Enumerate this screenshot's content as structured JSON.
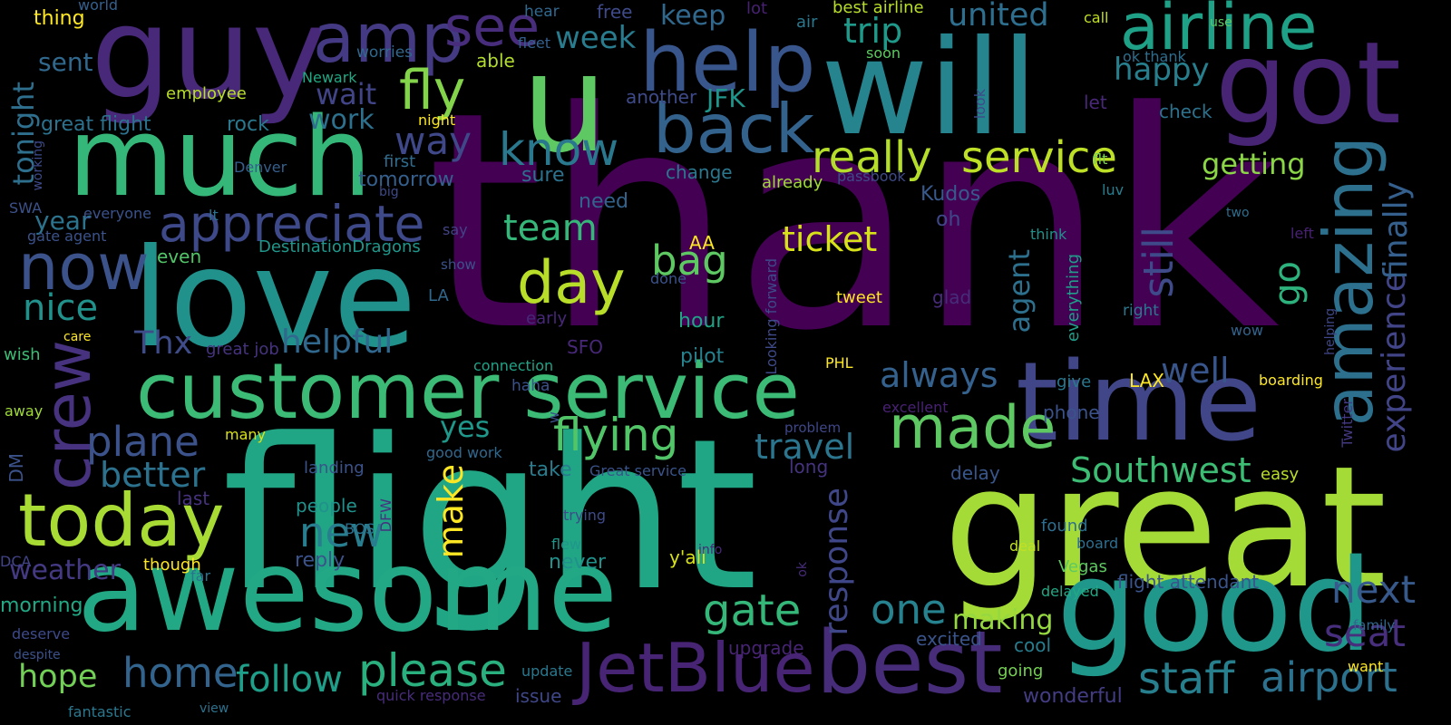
{
  "wordcloud": {
    "palette": [
      "#440154",
      "#3b528b",
      "#21918c",
      "#5ec962",
      "#fde725"
    ],
    "words": [
      {
        "text": "thank",
        "color": "#440154"
      },
      {
        "text": "flight",
        "color": "#21a685"
      },
      {
        "text": "will",
        "color": "#25848e"
      },
      {
        "text": "great",
        "color": "#a5db36"
      },
      {
        "text": "love",
        "color": "#21918c"
      },
      {
        "text": "awesome",
        "color": "#22a884"
      },
      {
        "text": "good",
        "color": "#1f988b"
      },
      {
        "text": "much",
        "color": "#35b779"
      },
      {
        "text": "guy",
        "color": "#482878"
      },
      {
        "text": "u",
        "color": "#5ec962"
      },
      {
        "text": "got",
        "color": "#482475"
      },
      {
        "text": "time",
        "color": "#404688"
      },
      {
        "text": "customer service",
        "color": "#3bbb75"
      },
      {
        "text": "best",
        "color": "#472c7a"
      },
      {
        "text": "today",
        "color": "#a8db34"
      },
      {
        "text": "help",
        "color": "#39568c"
      },
      {
        "text": "back",
        "color": "#33638d"
      },
      {
        "text": "airline",
        "color": "#1fa188"
      },
      {
        "text": "amazing",
        "color": "#2d708e"
      },
      {
        "text": "JetBlue",
        "color": "#482475"
      },
      {
        "text": "now",
        "color": "#3b528b"
      },
      {
        "text": "appreciate",
        "color": "#3e4989"
      },
      {
        "text": "crew",
        "color": "#46327e"
      },
      {
        "text": "day",
        "color": "#b8de29"
      },
      {
        "text": "know",
        "color": "#2a788e"
      },
      {
        "text": "made",
        "color": "#5ec962"
      },
      {
        "text": "amp",
        "color": "#443983"
      },
      {
        "text": "see",
        "color": "#472d7b"
      },
      {
        "text": "fly",
        "color": "#84d44b"
      },
      {
        "text": "really",
        "color": "#b5de2b"
      },
      {
        "text": "service",
        "color": "#bddf26"
      },
      {
        "text": "please",
        "color": "#2ab07f"
      },
      {
        "text": "flying",
        "color": "#52c569"
      },
      {
        "text": "staff",
        "color": "#277f8e"
      },
      {
        "text": "airport",
        "color": "#2c728e"
      },
      {
        "text": "gate",
        "color": "#35b779"
      },
      {
        "text": "follow",
        "color": "#1f9e89"
      },
      {
        "text": "home",
        "color": "#32648e"
      },
      {
        "text": "plane",
        "color": "#3b528b"
      },
      {
        "text": "new",
        "color": "#287d8e"
      },
      {
        "text": "one",
        "color": "#26828e"
      },
      {
        "text": "experience",
        "color": "#414487"
      },
      {
        "text": "finally",
        "color": "#355f8d"
      },
      {
        "text": "still",
        "color": "#3e4a89"
      },
      {
        "text": "Southwest",
        "color": "#3dbc74"
      },
      {
        "text": "travel",
        "color": "#2b758e"
      },
      {
        "text": "next",
        "color": "#38598c"
      },
      {
        "text": "seat",
        "color": "#472f7d"
      },
      {
        "text": "response",
        "color": "#3f4788"
      },
      {
        "text": "make",
        "color": "#fde725"
      },
      {
        "text": "hope",
        "color": "#73d056"
      },
      {
        "text": "nice",
        "color": "#21918c"
      },
      {
        "text": "helpful",
        "color": "#31688e"
      },
      {
        "text": "ticket",
        "color": "#d8e219"
      },
      {
        "text": "bag",
        "color": "#5ec962"
      },
      {
        "text": "team",
        "color": "#35b779"
      },
      {
        "text": "always",
        "color": "#34618d"
      },
      {
        "text": "well",
        "color": "#39568c"
      },
      {
        "text": "better",
        "color": "#2c728e"
      },
      {
        "text": "weather",
        "color": "#443a83"
      },
      {
        "text": "way",
        "color": "#3f4889"
      },
      {
        "text": "trip",
        "color": "#1f9a8a"
      },
      {
        "text": "week",
        "color": "#287c8e"
      },
      {
        "text": "united",
        "color": "#2e6e8e"
      },
      {
        "text": "happy",
        "color": "#277f8e"
      },
      {
        "text": "getting",
        "color": "#8bd646"
      },
      {
        "text": "go",
        "color": "#2db27d"
      },
      {
        "text": "making",
        "color": "#95d840"
      },
      {
        "text": "tonight",
        "color": "#2e6f8e"
      },
      {
        "text": "Thx",
        "color": "#3e4c8a"
      },
      {
        "text": "year",
        "color": "#2c738e"
      },
      {
        "text": "yes",
        "color": "#1f978b"
      },
      {
        "text": "agent",
        "color": "#2d708e"
      },
      {
        "text": "sent",
        "color": "#31688e"
      },
      {
        "text": "work",
        "color": "#2d718e"
      },
      {
        "text": "wait",
        "color": "#414487"
      },
      {
        "text": "keep",
        "color": "#31688e"
      },
      {
        "text": "JFK",
        "color": "#1f958b"
      },
      {
        "text": "rock",
        "color": "#2a788e"
      },
      {
        "text": "great flight",
        "color": "#2c728e"
      },
      {
        "text": "tomorrow",
        "color": "#35608d"
      },
      {
        "text": "first",
        "color": "#2f6c8e"
      },
      {
        "text": "Kudos",
        "color": "#38598c"
      },
      {
        "text": "change",
        "color": "#2a778e"
      },
      {
        "text": "sure",
        "color": "#2c728e"
      },
      {
        "text": "need",
        "color": "#33638d"
      },
      {
        "text": "oh",
        "color": "#3f4788"
      },
      {
        "text": "take",
        "color": "#287c8e"
      },
      {
        "text": "Great service",
        "color": "#3a548c"
      },
      {
        "text": "delay",
        "color": "#39568c"
      },
      {
        "text": "phone",
        "color": "#3b528b"
      },
      {
        "text": "cool",
        "color": "#287d8e"
      },
      {
        "text": "excited",
        "color": "#3a548c"
      },
      {
        "text": "people",
        "color": "#21918c"
      },
      {
        "text": "last",
        "color": "#46327e"
      },
      {
        "text": "long",
        "color": "#45337e"
      },
      {
        "text": "upgrade",
        "color": "#482475"
      },
      {
        "text": "flight attendant",
        "color": "#3a548c"
      },
      {
        "text": "wonderful",
        "color": "#433d84"
      },
      {
        "text": "LAX",
        "color": "#fde725"
      },
      {
        "text": "boarding",
        "color": "#fde725"
      },
      {
        "text": "PHL",
        "color": "#fde725"
      },
      {
        "text": "AA",
        "color": "#fde725"
      },
      {
        "text": "tweet",
        "color": "#fde725"
      },
      {
        "text": "thing",
        "color": "#fde725"
      },
      {
        "text": "y'all",
        "color": "#d8e219"
      },
      {
        "text": "though",
        "color": "#fde725"
      },
      {
        "text": "many",
        "color": "#d8e219"
      },
      {
        "text": "best airline",
        "color": "#b8de29"
      },
      {
        "text": "call",
        "color": "#c2df23"
      },
      {
        "text": "deal",
        "color": "#c2df23"
      },
      {
        "text": "easy",
        "color": "#b8de29"
      },
      {
        "text": "employee",
        "color": "#b8de29"
      },
      {
        "text": "able",
        "color": "#b2dd2d"
      },
      {
        "text": "already",
        "color": "#a0da39"
      },
      {
        "text": "morning",
        "color": "#22a884"
      },
      {
        "text": "even",
        "color": "#52c569"
      },
      {
        "text": "hour",
        "color": "#20a386"
      },
      {
        "text": "pilot",
        "color": "#26828e"
      },
      {
        "text": "never",
        "color": "#21918c"
      },
      {
        "text": "reply",
        "color": "#3b528b"
      },
      {
        "text": "issue",
        "color": "#3f4788"
      },
      {
        "text": "update",
        "color": "#2a788e"
      },
      {
        "text": "fantastic",
        "color": "#2a788e"
      },
      {
        "text": "view",
        "color": "#2c728e"
      },
      {
        "text": "quick response",
        "color": "#472c7a"
      },
      {
        "text": "going",
        "color": "#75d054"
      },
      {
        "text": "LA",
        "color": "#31688e"
      },
      {
        "text": "SFO",
        "color": "#482878"
      },
      {
        "text": "great job",
        "color": "#46337f"
      },
      {
        "text": "gate agent",
        "color": "#3b528b"
      },
      {
        "text": "everyone",
        "color": "#3b528b"
      },
      {
        "text": "DestinationDragons",
        "color": "#1f978b"
      },
      {
        "text": "SWA",
        "color": "#3b528b"
      },
      {
        "text": "lt",
        "color": "#2c728e"
      },
      {
        "text": "Denver",
        "color": "#35608d"
      },
      {
        "text": "working",
        "color": "#3e4a89"
      },
      {
        "text": "big",
        "color": "#3e4a89"
      },
      {
        "text": "passbook",
        "color": "#3e4a89"
      },
      {
        "text": "flt",
        "color": "#7ad151"
      },
      {
        "text": "luv",
        "color": "#287d8e"
      },
      {
        "text": "two",
        "color": "#2e6e8e"
      },
      {
        "text": "left",
        "color": "#482173"
      },
      {
        "text": "think",
        "color": "#21918c"
      },
      {
        "text": "everything",
        "color": "#1f9e89"
      },
      {
        "text": "glad",
        "color": "#472c7a"
      },
      {
        "text": "right",
        "color": "#2a788e"
      },
      {
        "text": "wow",
        "color": "#33638d"
      },
      {
        "text": "helping",
        "color": "#3f4788"
      },
      {
        "text": "give",
        "color": "#2a788e"
      },
      {
        "text": "excellent",
        "color": "#482173"
      },
      {
        "text": "problem",
        "color": "#3f4788"
      },
      {
        "text": "good work",
        "color": "#31688e"
      },
      {
        "text": "landing",
        "color": "#3b528b"
      },
      {
        "text": "Looking forward",
        "color": "#3e4a89"
      },
      {
        "text": "connection",
        "color": "#20a386"
      },
      {
        "text": "haha",
        "color": "#3b528b"
      },
      {
        "text": "early",
        "color": "#482878"
      },
      {
        "text": "done",
        "color": "#3b528b"
      },
      {
        "text": "show",
        "color": "#3b528b"
      },
      {
        "text": "say",
        "color": "#414487"
      },
      {
        "text": "world",
        "color": "#35608d"
      },
      {
        "text": "worries",
        "color": "#31688e"
      },
      {
        "text": "Newark",
        "color": "#22a884"
      },
      {
        "text": "hear",
        "color": "#31688e"
      },
      {
        "text": "free",
        "color": "#3e4a89"
      },
      {
        "text": "lot",
        "color": "#482173"
      },
      {
        "text": "air",
        "color": "#2a788e"
      },
      {
        "text": "fleet",
        "color": "#35608d"
      },
      {
        "text": "soon",
        "color": "#5ec962"
      },
      {
        "text": "ok thank",
        "color": "#2e6e8e"
      },
      {
        "text": "use",
        "color": "#5ec962"
      },
      {
        "text": "night",
        "color": "#fde725"
      },
      {
        "text": "another",
        "color": "#3e4a89"
      },
      {
        "text": "look",
        "color": "#3e4a89"
      },
      {
        "text": "let",
        "color": "#482878"
      },
      {
        "text": "check",
        "color": "#2c728e"
      },
      {
        "text": "care",
        "color": "#fde725"
      },
      {
        "text": "wish",
        "color": "#3dbc74"
      },
      {
        "text": "away",
        "color": "#a0da39"
      },
      {
        "text": "DM",
        "color": "#3b528b"
      },
      {
        "text": "deserve",
        "color": "#3e4a89"
      },
      {
        "text": "despite",
        "color": "#3b528b"
      },
      {
        "text": "DCA",
        "color": "#414487"
      },
      {
        "text": "far",
        "color": "#2c728e"
      },
      {
        "text": "BOS",
        "color": "#2c728e"
      },
      {
        "text": "DFW",
        "color": "#46327e"
      },
      {
        "text": "trying",
        "color": "#3e4a89"
      },
      {
        "text": "flew",
        "color": "#1f978b"
      },
      {
        "text": "info",
        "color": "#482878"
      },
      {
        "text": "ok",
        "color": "#472c7a"
      },
      {
        "text": "found",
        "color": "#2e6e8e"
      },
      {
        "text": "board",
        "color": "#2e6e8e"
      },
      {
        "text": "Vegas",
        "color": "#5ec962"
      },
      {
        "text": "delayed",
        "color": "#22a884"
      },
      {
        "text": "family",
        "color": "#31688e"
      },
      {
        "text": "want",
        "color": "#fde725"
      },
      {
        "text": "Twitter",
        "color": "#443983"
      },
      {
        "text": "w",
        "color": "#3b528b"
      }
    ]
  }
}
